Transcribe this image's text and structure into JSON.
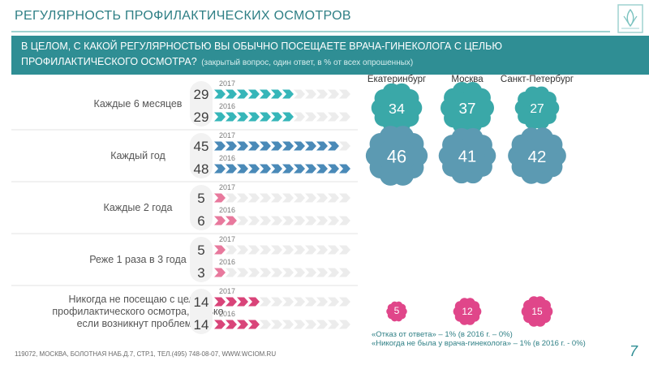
{
  "header": {
    "title": "РЕГУЛЯРНОСТЬ ПРОФИЛАКТИЧЕСКИХ ОСМОТРОВ",
    "logo_label": "WCIOM"
  },
  "question": {
    "text": "В ЦЕЛОМ, С КАКОЙ РЕГУЛЯРНОСТЬЮ ВЫ ОБЫЧНО ПОСЕЩАЕТЕ ВРАЧА-ГИНЕКОЛОГА С ЦЕЛЬЮ ПРОФИЛАКТИЧЕСКОГО ОСМОТРА?",
    "note": "(закрытый вопрос, один ответ, в % от всех опрошенных)"
  },
  "notes": {
    "refusal": "«Отказ от ответа» – 1% (в 2016 г. – 0%)",
    "never_visited": "«Никогда не была у врача-гинеколога» – 1% (в 2016 г. - 0%)"
  },
  "footer": {
    "address": "119072, МОСКВА, БОЛОТНАЯ НАБ.Д.7, СТР.1, ТЕЛ.(495) 748-08-07, WWW.WCIOM.RU",
    "page_number": "7"
  },
  "colors": {
    "teal": "#2f8e94",
    "teal_light": "#9fd2d0",
    "arrow_teal": "#36b6b9",
    "arrow_blue": "#4a8ab8",
    "arrow_pink": "#e8799d",
    "arrow_magenta": "#d94479",
    "arrow_gray": "#ececec",
    "flower_teal": "#3aa8a8",
    "flower_blue": "#5c9ab2",
    "flower_pink": "#e0468a",
    "label_gray": "#555555",
    "year_gray": "#7a7a7a"
  },
  "chart_data": {
    "type": "bar",
    "unit": "%",
    "years": [
      "2017",
      "2016"
    ],
    "categories": [
      {
        "label": "Каждые 6 месяцев",
        "values": [
          29,
          29
        ],
        "color_key": "arrow_teal"
      },
      {
        "label": "Каждый год",
        "values": [
          45,
          48
        ],
        "color_key": "arrow_blue"
      },
      {
        "label": "Каждые 2 года",
        "values": [
          5,
          6
        ],
        "color_key": "arrow_pink"
      },
      {
        "label": "Реже 1 раза в 3 года",
        "values": [
          5,
          3
        ],
        "color_key": "arrow_pink"
      },
      {
        "label": "Никогда не посещаю с целью профилактического осмотра, только если возникнут проблемы",
        "values": [
          14,
          14
        ],
        "color_key": "arrow_magenta"
      }
    ],
    "cities": [
      "Екатеринбург",
      "Москва",
      "Санкт-Петербург"
    ],
    "city_values": [
      {
        "row": 0,
        "values": [
          34,
          37,
          27
        ],
        "color_key": "flower_teal"
      },
      {
        "row": 1,
        "values": [
          46,
          41,
          42
        ],
        "color_key": "flower_blue"
      },
      {
        "row": 4,
        "values": [
          5,
          12,
          15
        ],
        "color_key": "flower_pink"
      }
    ]
  }
}
